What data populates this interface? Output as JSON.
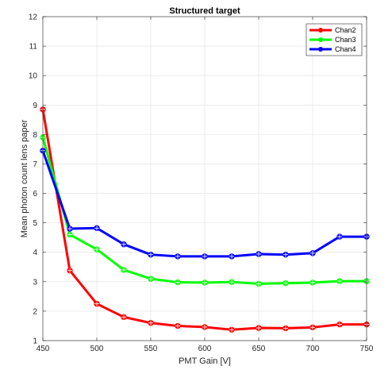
{
  "chart_data": {
    "type": "line",
    "title": "Structured target",
    "xlabel": "PMT Gain [V]",
    "ylabel": "Mean photon count lens paper",
    "xlim": [
      450,
      750
    ],
    "ylim": [
      1,
      12
    ],
    "xticks": [
      450,
      500,
      550,
      600,
      650,
      700,
      750
    ],
    "yticks": [
      1,
      2,
      3,
      4,
      5,
      6,
      7,
      8,
      9,
      10,
      11,
      12
    ],
    "grid": true,
    "legend_position": "top-right",
    "x": [
      450,
      475,
      500,
      525,
      550,
      575,
      600,
      625,
      650,
      675,
      700,
      725,
      750
    ],
    "series": [
      {
        "name": "Chan2",
        "color": "#ff0000",
        "values": [
          8.85,
          3.38,
          2.25,
          1.8,
          1.6,
          1.5,
          1.46,
          1.37,
          1.43,
          1.42,
          1.45,
          1.55,
          1.55
        ]
      },
      {
        "name": "Chan3",
        "color": "#00ff00",
        "values": [
          7.9,
          4.6,
          4.1,
          3.4,
          3.1,
          2.98,
          2.97,
          2.99,
          2.93,
          2.95,
          2.97,
          3.02,
          3.02
        ]
      },
      {
        "name": "Chan4",
        "color": "#0000ff",
        "values": [
          7.45,
          4.8,
          4.82,
          4.27,
          3.92,
          3.86,
          3.86,
          3.86,
          3.94,
          3.92,
          3.97,
          4.53,
          4.53
        ]
      }
    ]
  }
}
